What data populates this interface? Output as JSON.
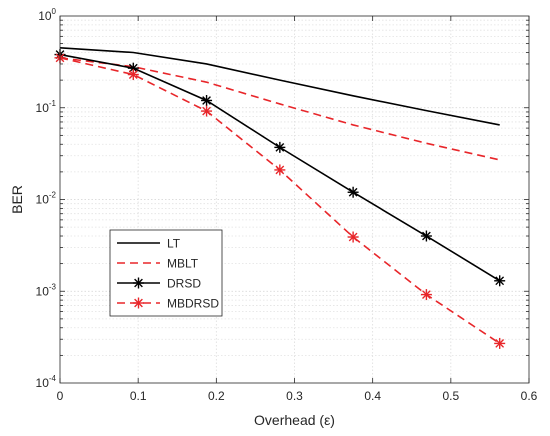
{
  "chart_data": {
    "type": "line",
    "xlabel": "Overhead (ε)",
    "ylabel": "BER",
    "xlim": [
      0,
      0.6
    ],
    "ylim": [
      0.0001,
      1
    ],
    "yscale": "log",
    "grid": "major and minor",
    "legend_position": "lower-left",
    "x_ticks": [
      "0",
      "0.1",
      "0.2",
      "0.3",
      "0.4",
      "0.5",
      "0.6"
    ],
    "y_tick_labels": [
      {
        "base": "10",
        "exp": "-4",
        "value": 0.0001
      },
      {
        "base": "10",
        "exp": "-3",
        "value": 0.001
      },
      {
        "base": "10",
        "exp": "-2",
        "value": 0.01
      },
      {
        "base": "10",
        "exp": "-1",
        "value": 0.1
      },
      {
        "base": "10",
        "exp": "0",
        "value": 1
      }
    ],
    "series": [
      {
        "name": "LT",
        "color": "#000000",
        "dash": "solid",
        "marker": "none",
        "x": [
          0,
          0.09375,
          0.1875,
          0.28125,
          0.375,
          0.46875,
          0.5625
        ],
        "y": [
          0.45,
          0.4,
          0.3,
          0.2,
          0.135,
          0.093,
          0.065
        ]
      },
      {
        "name": "MBLT",
        "color": "#e8262a",
        "dash": "dashed",
        "marker": "none",
        "x": [
          0,
          0.09375,
          0.1875,
          0.28125,
          0.375,
          0.46875,
          0.5625
        ],
        "y": [
          0.35,
          0.28,
          0.19,
          0.11,
          0.065,
          0.041,
          0.027
        ]
      },
      {
        "name": "DRSD",
        "color": "#000000",
        "dash": "solid",
        "marker": "asterisk",
        "x": [
          0,
          0.09375,
          0.1875,
          0.28125,
          0.375,
          0.46875,
          0.5625
        ],
        "y": [
          0.38,
          0.27,
          0.12,
          0.037,
          0.012,
          0.004,
          0.0013
        ]
      },
      {
        "name": "MBDRSD",
        "color": "#e8262a",
        "dash": "dashed",
        "marker": "asterisk",
        "x": [
          0,
          0.09375,
          0.1875,
          0.28125,
          0.375,
          0.46875,
          0.5625
        ],
        "y": [
          0.35,
          0.23,
          0.092,
          0.021,
          0.0039,
          0.00092,
          0.00027
        ]
      }
    ]
  }
}
